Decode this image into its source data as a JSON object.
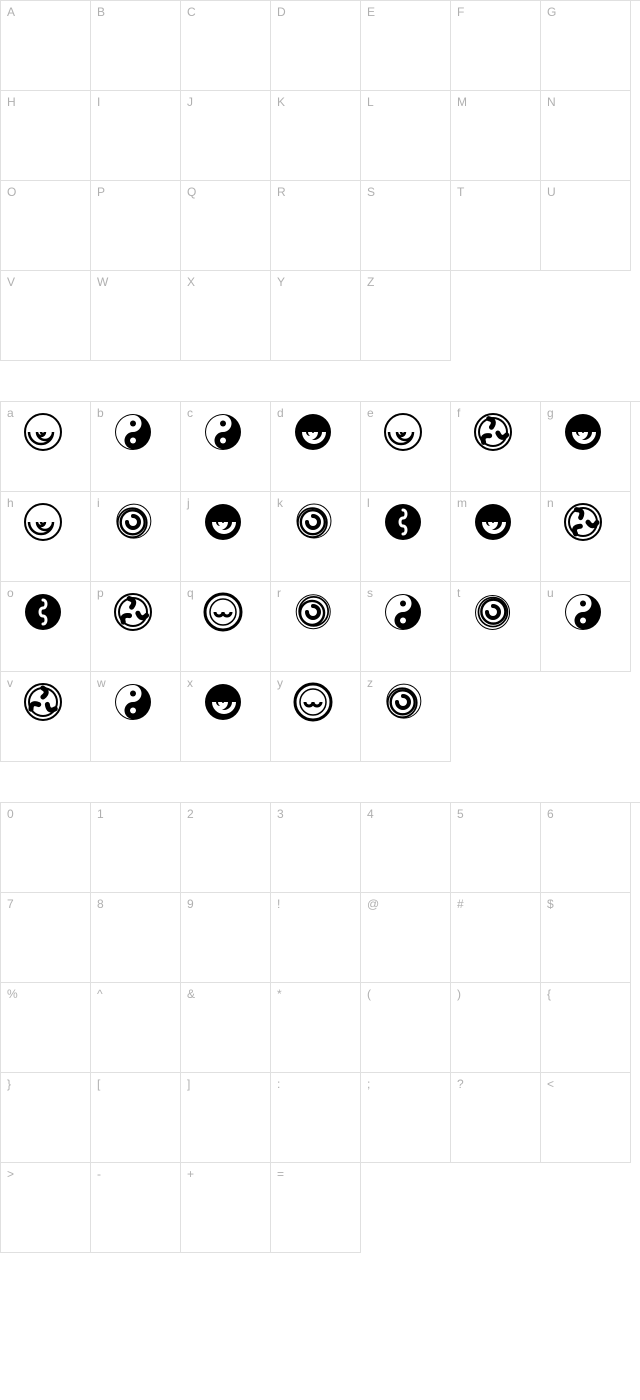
{
  "colors": {
    "border": "#e0e0e0",
    "label": "#b0b0b0",
    "glyph": "#000000",
    "background": "#ffffff"
  },
  "layout": {
    "columns": 7,
    "cell_size": 90
  },
  "sections": [
    {
      "id": "uppercase",
      "rows": [
        [
          {
            "label": "A",
            "glyph": null
          },
          {
            "label": "B",
            "glyph": null
          },
          {
            "label": "C",
            "glyph": null
          },
          {
            "label": "D",
            "glyph": null
          },
          {
            "label": "E",
            "glyph": null
          },
          {
            "label": "F",
            "glyph": null
          },
          {
            "label": "G",
            "glyph": null
          }
        ],
        [
          {
            "label": "H",
            "glyph": null
          },
          {
            "label": "I",
            "glyph": null
          },
          {
            "label": "J",
            "glyph": null
          },
          {
            "label": "K",
            "glyph": null
          },
          {
            "label": "L",
            "glyph": null
          },
          {
            "label": "M",
            "glyph": null
          },
          {
            "label": "N",
            "glyph": null
          }
        ],
        [
          {
            "label": "O",
            "glyph": null
          },
          {
            "label": "P",
            "glyph": null
          },
          {
            "label": "Q",
            "glyph": null
          },
          {
            "label": "R",
            "glyph": null
          },
          {
            "label": "S",
            "glyph": null
          },
          {
            "label": "T",
            "glyph": null
          },
          {
            "label": "U",
            "glyph": null
          }
        ],
        [
          {
            "label": "V",
            "glyph": null
          },
          {
            "label": "W",
            "glyph": null
          },
          {
            "label": "X",
            "glyph": null
          },
          {
            "label": "Y",
            "glyph": null
          },
          {
            "label": "Z",
            "glyph": null
          },
          null,
          null
        ]
      ]
    },
    {
      "id": "lowercase",
      "rows": [
        [
          {
            "label": "a",
            "glyph": "disc-hook"
          },
          {
            "label": "b",
            "glyph": "swirl-open"
          },
          {
            "label": "c",
            "glyph": "spiral-thin"
          },
          {
            "label": "d",
            "glyph": "spiral-thick"
          },
          {
            "label": "e",
            "glyph": "vortex-bold"
          },
          {
            "label": "f",
            "glyph": "spiral-loose"
          },
          {
            "label": "g",
            "glyph": "comma-disc"
          }
        ],
        [
          {
            "label": "h",
            "glyph": "double-spiral"
          },
          {
            "label": "i",
            "glyph": "lizard-swirl"
          },
          {
            "label": "j",
            "glyph": "radial-swirl"
          },
          {
            "label": "k",
            "glyph": "triskele-bold"
          },
          {
            "label": "l",
            "glyph": "knot-swirl"
          },
          {
            "label": "m",
            "glyph": "spiral-band"
          },
          {
            "label": "n",
            "glyph": "rotor-swirl"
          }
        ],
        [
          {
            "label": "o",
            "glyph": "claw-swirl"
          },
          {
            "label": "p",
            "glyph": "triple-dot-swirl"
          },
          {
            "label": "q",
            "glyph": "spiral-heavy"
          },
          {
            "label": "r",
            "glyph": "spiral-coil"
          },
          {
            "label": "s",
            "glyph": "rose-swirl"
          },
          {
            "label": "t",
            "glyph": "maze-swirl"
          },
          {
            "label": "u",
            "glyph": "blade-swirl"
          }
        ],
        [
          {
            "label": "v",
            "glyph": "wave-disc"
          },
          {
            "label": "w",
            "glyph": "yin-swirl"
          },
          {
            "label": "x",
            "glyph": "triskele-open"
          },
          {
            "label": "y",
            "glyph": "curl-ring"
          },
          {
            "label": "z",
            "glyph": "galaxy-swirl"
          },
          null,
          null
        ]
      ]
    },
    {
      "id": "symbols",
      "rows": [
        [
          {
            "label": "0",
            "glyph": null
          },
          {
            "label": "1",
            "glyph": null
          },
          {
            "label": "2",
            "glyph": null
          },
          {
            "label": "3",
            "glyph": null
          },
          {
            "label": "4",
            "glyph": null
          },
          {
            "label": "5",
            "glyph": null
          },
          {
            "label": "6",
            "glyph": null
          }
        ],
        [
          {
            "label": "7",
            "glyph": null
          },
          {
            "label": "8",
            "glyph": null
          },
          {
            "label": "9",
            "glyph": null
          },
          {
            "label": "!",
            "glyph": null
          },
          {
            "label": "@",
            "glyph": null
          },
          {
            "label": "#",
            "glyph": null
          },
          {
            "label": "$",
            "glyph": null
          }
        ],
        [
          {
            "label": "%",
            "glyph": null
          },
          {
            "label": "^",
            "glyph": null
          },
          {
            "label": "&",
            "glyph": null
          },
          {
            "label": "*",
            "glyph": null
          },
          {
            "label": "(",
            "glyph": null
          },
          {
            "label": ")",
            "glyph": null
          },
          {
            "label": "{",
            "glyph": null
          }
        ],
        [
          {
            "label": "}",
            "glyph": null
          },
          {
            "label": "[",
            "glyph": null
          },
          {
            "label": "]",
            "glyph": null
          },
          {
            "label": ":",
            "glyph": null
          },
          {
            "label": ";",
            "glyph": null
          },
          {
            "label": "?",
            "glyph": null
          },
          {
            "label": "<",
            "glyph": null
          }
        ],
        [
          {
            "label": ">",
            "glyph": null
          },
          {
            "label": "-",
            "glyph": null
          },
          {
            "label": "+",
            "glyph": null
          },
          {
            "label": "=",
            "glyph": null
          },
          null,
          null,
          null
        ]
      ]
    }
  ]
}
